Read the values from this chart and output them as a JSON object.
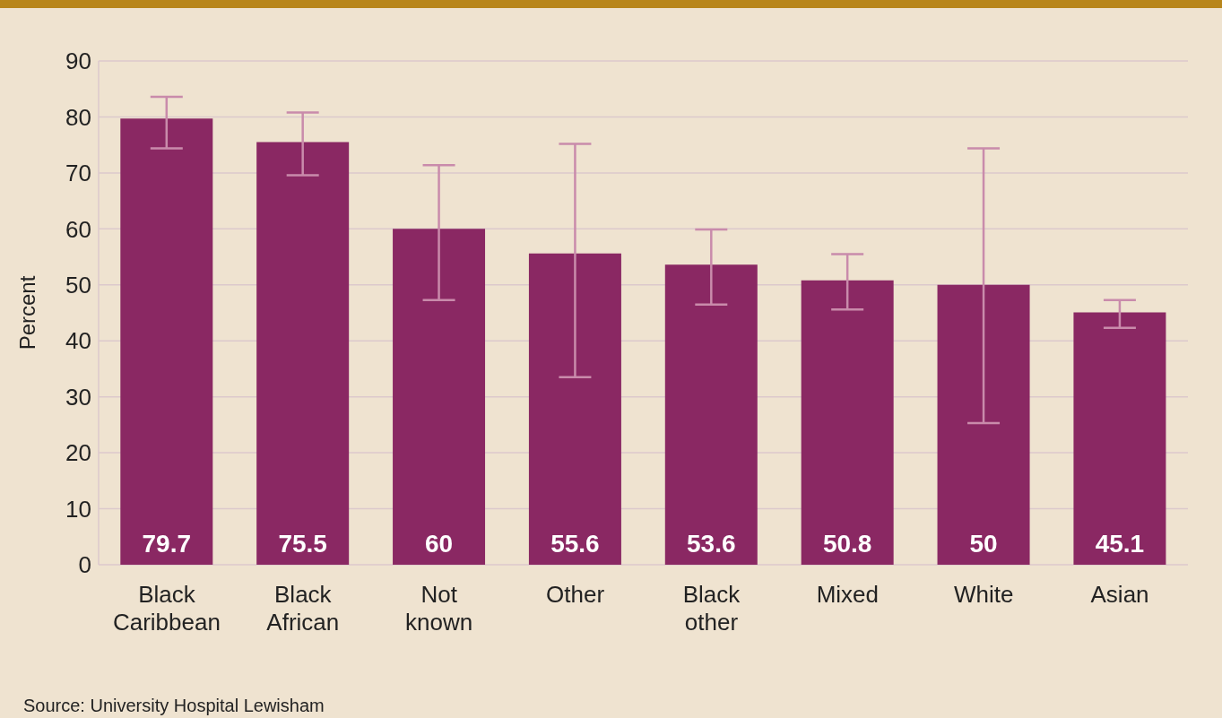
{
  "chart_data": {
    "type": "bar",
    "ylabel": "Percent",
    "categories": [
      "Black Caribbean",
      "Black African",
      "Not known",
      "Other",
      "Black other",
      "Mixed",
      "White",
      "Asian"
    ],
    "values": [
      79.7,
      75.5,
      60,
      55.6,
      53.6,
      50.8,
      50,
      45.1
    ],
    "errors": [
      [
        74.4,
        83.6
      ],
      [
        69.6,
        80.8
      ],
      [
        47.3,
        71.4
      ],
      [
        33.5,
        75.2
      ],
      [
        46.5,
        59.9
      ],
      [
        45.6,
        55.5
      ],
      [
        25.3,
        74.4
      ],
      [
        42.3,
        47.3
      ]
    ],
    "color": "#8a2863",
    "ylim": [
      0,
      90
    ],
    "yticks": [
      0,
      10,
      20,
      30,
      40,
      50,
      60,
      70,
      80,
      90
    ],
    "grid": "y",
    "data_labels": true,
    "annotations": [
      "Source: University Hospital Lewisham"
    ]
  }
}
